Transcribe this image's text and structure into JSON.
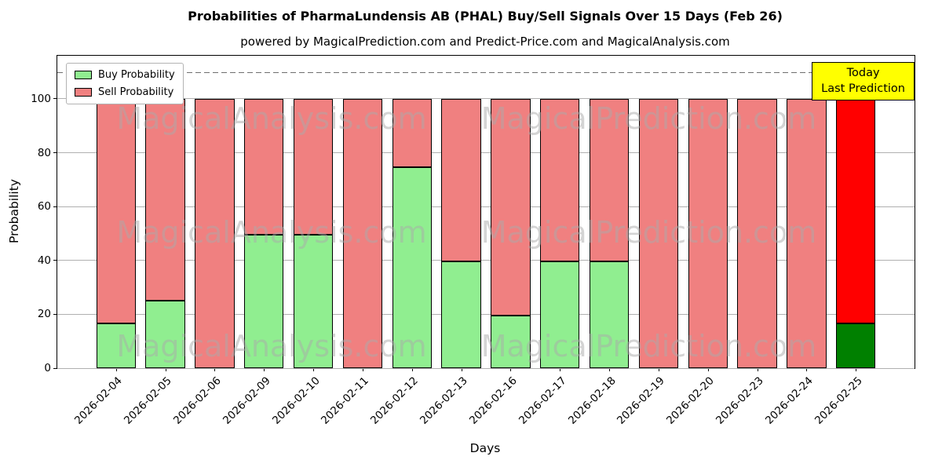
{
  "chart_data": {
    "type": "bar",
    "stacked": true,
    "title": "Probabilities of PharmaLundensis AB (PHAL) Buy/Sell Signals Over 15 Days (Feb 26)",
    "subtitle": "powered by MagicalPrediction.com and Predict-Price.com and MagicalAnalysis.com",
    "xlabel": "Days",
    "ylabel": "Probability",
    "categories": [
      "2026-02-04",
      "2026-02-05",
      "2026-02-06",
      "2026-02-09",
      "2026-02-10",
      "2026-02-11",
      "2026-02-12",
      "2026-02-13",
      "2026-02-16",
      "2026-02-17",
      "2026-02-18",
      "2026-02-19",
      "2026-02-20",
      "2026-02-23",
      "2026-02-24",
      "2026-02-25"
    ],
    "series": [
      {
        "name": "Buy Probability",
        "color": "#90EE90",
        "values": [
          16.5,
          25,
          0,
          49.5,
          49.5,
          0,
          74.5,
          39.5,
          19.5,
          39.5,
          39.5,
          0,
          0,
          0,
          0,
          16.5
        ]
      },
      {
        "name": "Sell Probability",
        "color": "#F08080",
        "values": [
          83.5,
          75,
          100,
          50.5,
          50.5,
          100,
          25.5,
          60.5,
          80.5,
          60.5,
          60.5,
          100,
          100,
          100,
          100,
          83.5
        ]
      }
    ],
    "last_bar_colors": {
      "buy": "#008000",
      "sell": "#FF0000"
    },
    "ylim": [
      0,
      116
    ],
    "yticks": [
      0,
      20,
      40,
      60,
      80,
      100
    ],
    "dashed_line_y": 110,
    "grid": "horizontal",
    "legend_position": "upper left",
    "annotation": {
      "line1": "Today",
      "line2": "Last Prediction",
      "bg_color": "#FFFF00"
    },
    "watermarks": [
      "MagicalAnalysis.com",
      "MagicalPrediction.com"
    ]
  }
}
